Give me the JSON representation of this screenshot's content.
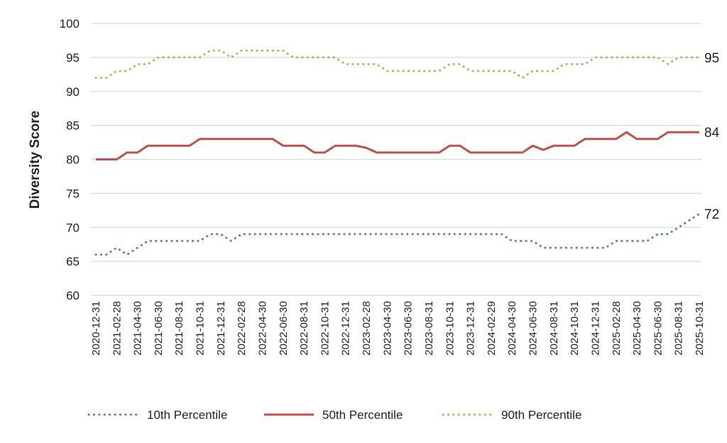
{
  "chart_data": {
    "type": "line",
    "title": "",
    "xlabel": "",
    "ylabel": "Diversity Score",
    "ylim": [
      60,
      100
    ],
    "yticks": [
      60,
      65,
      70,
      75,
      80,
      85,
      90,
      95,
      100
    ],
    "grid": true,
    "legend_position": "bottom",
    "x": [
      "2020-12-31",
      "2021-01-31",
      "2021-02-28",
      "2021-03-31",
      "2021-04-30",
      "2021-05-31",
      "2021-06-30",
      "2021-07-31",
      "2021-08-31",
      "2021-09-30",
      "2021-10-31",
      "2021-11-30",
      "2021-12-31",
      "2022-01-31",
      "2022-02-28",
      "2022-03-31",
      "2022-04-30",
      "2022-05-31",
      "2022-06-30",
      "2022-07-31",
      "2022-08-31",
      "2022-09-30",
      "2022-10-31",
      "2022-11-30",
      "2022-12-31",
      "2023-01-31",
      "2023-02-28",
      "2023-03-31",
      "2023-04-30",
      "2023-05-31",
      "2023-06-30",
      "2023-07-31",
      "2023-08-31",
      "2023-09-30",
      "2023-10-31",
      "2023-11-30",
      "2023-12-31",
      "2024-01-31",
      "2024-02-29",
      "2024-03-31",
      "2024-04-30",
      "2024-05-31",
      "2024-06-30",
      "2024-07-31",
      "2024-08-31",
      "2024-09-30",
      "2024-10-31",
      "2024-11-30",
      "2024-12-31",
      "2025-01-31",
      "2025-02-28",
      "2025-03-31",
      "2025-04-30",
      "2025-05-31",
      "2025-06-30",
      "2025-07-31",
      "2025-08-31",
      "2025-09-30",
      "2025-10-31"
    ],
    "series": [
      {
        "name": "10th Percentile",
        "color": "#4a7ebf",
        "style": "dotted",
        "end_label": "72",
        "values": [
          66,
          66,
          67,
          66,
          67,
          68,
          68,
          68,
          68,
          68,
          68,
          69,
          69,
          68,
          69,
          69,
          69,
          69,
          69,
          69,
          69,
          69,
          69,
          69,
          69,
          69,
          69,
          69,
          69,
          69,
          69,
          69,
          69,
          69,
          69,
          69,
          69,
          69,
          69,
          69,
          68,
          68,
          68,
          67,
          67,
          67,
          67,
          67,
          67,
          67,
          68,
          68,
          68,
          68,
          69,
          69,
          70,
          71,
          72
        ]
      },
      {
        "name": "50th Percentile",
        "color": "#c0504d",
        "style": "solid",
        "end_label": "84",
        "values": [
          80,
          80,
          80,
          81,
          81,
          82,
          82,
          82,
          82,
          82,
          83,
          83,
          83,
          83,
          83,
          83,
          83,
          83,
          82,
          82,
          82,
          81,
          81,
          82,
          82,
          82,
          81.7,
          81,
          81,
          81,
          81,
          81,
          81,
          81,
          82,
          82,
          81,
          81,
          81,
          81,
          81,
          81,
          82,
          81.4,
          82,
          82,
          82,
          83,
          83,
          83,
          83,
          84,
          83,
          83,
          83,
          84,
          84,
          84,
          84
        ]
      },
      {
        "name": "90th Percentile",
        "color": "#9bbb59",
        "style": "dotted",
        "end_label": "95",
        "values": [
          92,
          92,
          93,
          93,
          94,
          94,
          95,
          95,
          95,
          95,
          95,
          96,
          96,
          95,
          96,
          96,
          96,
          96,
          96,
          95,
          95,
          95,
          95,
          95,
          94,
          94,
          94,
          94,
          93,
          93,
          93,
          93,
          93,
          93,
          94,
          94,
          93,
          93,
          93,
          93,
          93,
          92,
          93,
          93,
          93,
          94,
          94,
          94,
          95,
          95,
          95,
          95,
          95,
          95,
          95,
          94,
          95,
          95,
          95
        ]
      }
    ]
  }
}
